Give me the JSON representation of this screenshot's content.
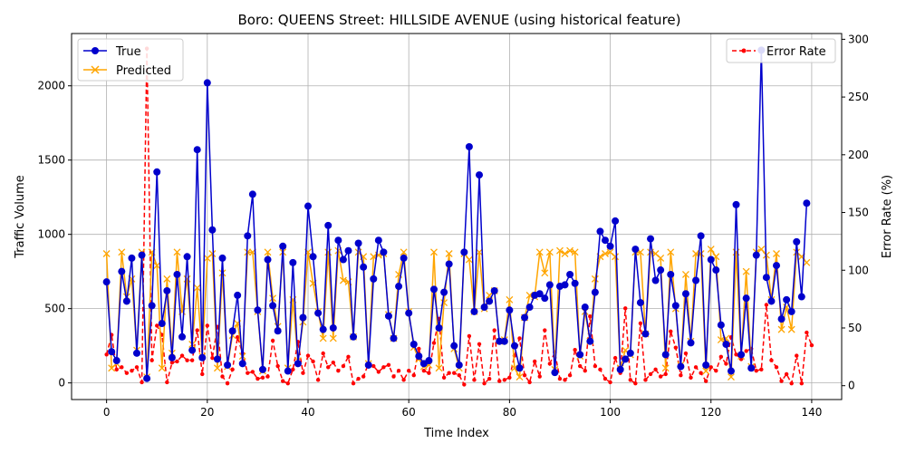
{
  "chart_data": {
    "type": "line",
    "title": "Boro: QUEENS Street: HILLSIDE AVENUE (using historical feature)",
    "xlabel": "Time Index",
    "ylabel": "Traffic Volume",
    "y2label": "Error Rate (%)",
    "xlim": [
      -6.95,
      145.95
    ],
    "ylim": [
      -112,
      2352
    ],
    "y2lim": [
      -12,
      305
    ],
    "xticks": [
      0,
      20,
      40,
      60,
      80,
      100,
      120,
      140
    ],
    "yticks": [
      0,
      500,
      1000,
      1500,
      2000
    ],
    "y2ticks": [
      0,
      50,
      100,
      150,
      200,
      250,
      300
    ],
    "grid": true,
    "legend_left": {
      "placement": "upper-left",
      "entries": [
        "True",
        "Predicted"
      ]
    },
    "legend_right": {
      "placement": "upper-right",
      "entries": [
        "Error Rate"
      ]
    },
    "series": [
      {
        "name": "True",
        "axis": "left",
        "color": "#0000cc",
        "marker": "circle",
        "values": [
          680,
          210,
          150,
          750,
          550,
          840,
          200,
          860,
          30,
          520,
          1420,
          400,
          620,
          170,
          730,
          310,
          850,
          220,
          1570,
          170,
          2020,
          1030,
          160,
          840,
          120,
          350,
          590,
          130,
          990,
          1270,
          490,
          90,
          830,
          520,
          350,
          920,
          80,
          810,
          130,
          440,
          1190,
          850,
          470,
          360,
          1060,
          370,
          960,
          830,
          890,
          310,
          940,
          780,
          120,
          700,
          960,
          880,
          450,
          300,
          650,
          840,
          470,
          260,
          180,
          130,
          150,
          630,
          370,
          610,
          800,
          250,
          120,
          880,
          1590,
          480,
          1400,
          510,
          550,
          620,
          280,
          280,
          490,
          250,
          100,
          440,
          510,
          590,
          600,
          570,
          660,
          70,
          650,
          660,
          730,
          670,
          190,
          510,
          280,
          610,
          1020,
          960,
          920,
          1090,
          90,
          160,
          200,
          900,
          540,
          330,
          970,
          690,
          760,
          190,
          730,
          520,
          110,
          600,
          270,
          690,
          990,
          120,
          830,
          760,
          390,
          260,
          80,
          1200,
          190,
          570,
          100,
          860,
          2240,
          710,
          550,
          790,
          430,
          560,
          480,
          950,
          580,
          1210
        ]
      },
      {
        "name": "Predicted",
        "axis": "left",
        "color": "#ffa500",
        "marker": "x",
        "values": [
          870,
          100,
          130,
          880,
          580,
          700,
          220,
          880,
          40,
          880,
          790,
          100,
          700,
          200,
          880,
          480,
          700,
          260,
          640,
          180,
          840,
          870,
          100,
          740,
          110,
          320,
          400,
          180,
          880,
          880,
          480,
          80,
          880,
          570,
          380,
          880,
          100,
          560,
          150,
          410,
          880,
          670,
          480,
          300,
          880,
          300,
          890,
          690,
          680,
          310,
          880,
          850,
          130,
          850,
          860,
          870,
          460,
          300,
          730,
          880,
          480,
          240,
          160,
          110,
          120,
          880,
          100,
          540,
          870,
          230,
          100,
          870,
          830,
          480,
          880,
          500,
          590,
          620,
          280,
          290,
          560,
          100,
          40,
          440,
          590,
          580,
          880,
          740,
          880,
          90,
          890,
          870,
          890,
          880,
          180,
          480,
          280,
          700,
          850,
          870,
          880,
          850,
          100,
          220,
          190,
          880,
          880,
          330,
          880,
          870,
          840,
          100,
          880,
          500,
          120,
          730,
          280,
          870,
          870,
          80,
          900,
          850,
          290,
          300,
          40,
          880,
          180,
          750,
          110,
          880,
          900,
          860,
          560,
          870,
          360,
          510,
          360,
          880,
          850,
          810
        ]
      },
      {
        "name": "Error Rate",
        "axis": "right",
        "color": "#ff0000",
        "marker": "dot",
        "linestyle": "dashed",
        "values": [
          27,
          44,
          14,
          16,
          11,
          13,
          16,
          3,
          292,
          22,
          52,
          44,
          3,
          20,
          21,
          26,
          22,
          22,
          48,
          10,
          52,
          24,
          51,
          8,
          2,
          14,
          42,
          28,
          11,
          12,
          6,
          7,
          8,
          39,
          17,
          4,
          2,
          14,
          38,
          11,
          26,
          21,
          5,
          28,
          16,
          20,
          13,
          17,
          25,
          2,
          6,
          8,
          19,
          17,
          12,
          16,
          18,
          8,
          13,
          5,
          13,
          9,
          32,
          13,
          11,
          37,
          58,
          7,
          11,
          11,
          9,
          1,
          43,
          5,
          36,
          2,
          6,
          48,
          4,
          5,
          7,
          26,
          41,
          9,
          3,
          21,
          8,
          48,
          19,
          29,
          6,
          5,
          9,
          31,
          17,
          13,
          60,
          17,
          14,
          6,
          3,
          24,
          11,
          67,
          5,
          2,
          54,
          5,
          10,
          14,
          8,
          10,
          47,
          33,
          9,
          28,
          7,
          16,
          11,
          4,
          16,
          13,
          25,
          19,
          42,
          27,
          23,
          30,
          32,
          13,
          14,
          70,
          22,
          16,
          4,
          10,
          2,
          26,
          2,
          46,
          35
        ]
      }
    ]
  }
}
